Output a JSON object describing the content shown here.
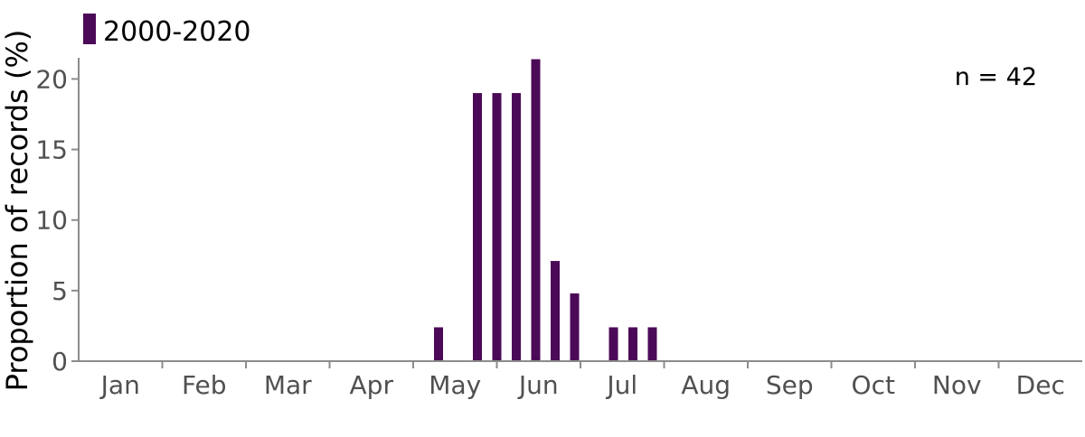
{
  "chart_data": {
    "type": "bar",
    "legend": {
      "placement": "top-left",
      "entries": [
        {
          "label": "2000-2020",
          "color": "#4b0a57"
        }
      ]
    },
    "series": [
      {
        "name": "2000-2020",
        "color": "#4b0a57",
        "points": [
          {
            "week": 1,
            "value": 2.4
          },
          {
            "week": 3,
            "value": 19.0
          },
          {
            "week": 4,
            "value": 19.0
          },
          {
            "week": 5,
            "value": 19.0
          },
          {
            "week": 6,
            "value": 21.4
          },
          {
            "week": 7,
            "value": 7.1
          },
          {
            "week": 8,
            "value": 4.8
          },
          {
            "week": 10,
            "value": 2.4
          },
          {
            "week": 11,
            "value": 2.4
          },
          {
            "week": 12,
            "value": 2.4
          }
        ]
      }
    ],
    "week_origin": "May",
    "x_categories": [
      "Jan",
      "Feb",
      "Mar",
      "Apr",
      "May",
      "Jun",
      "Jul",
      "Aug",
      "Sep",
      "Oct",
      "Nov",
      "Dec"
    ],
    "ylabel": "Proportion of records (%)",
    "yticks": [
      0,
      5,
      10,
      15,
      20
    ],
    "ylim": [
      0,
      21.5
    ],
    "annotation": "n = 42",
    "grid": false
  }
}
